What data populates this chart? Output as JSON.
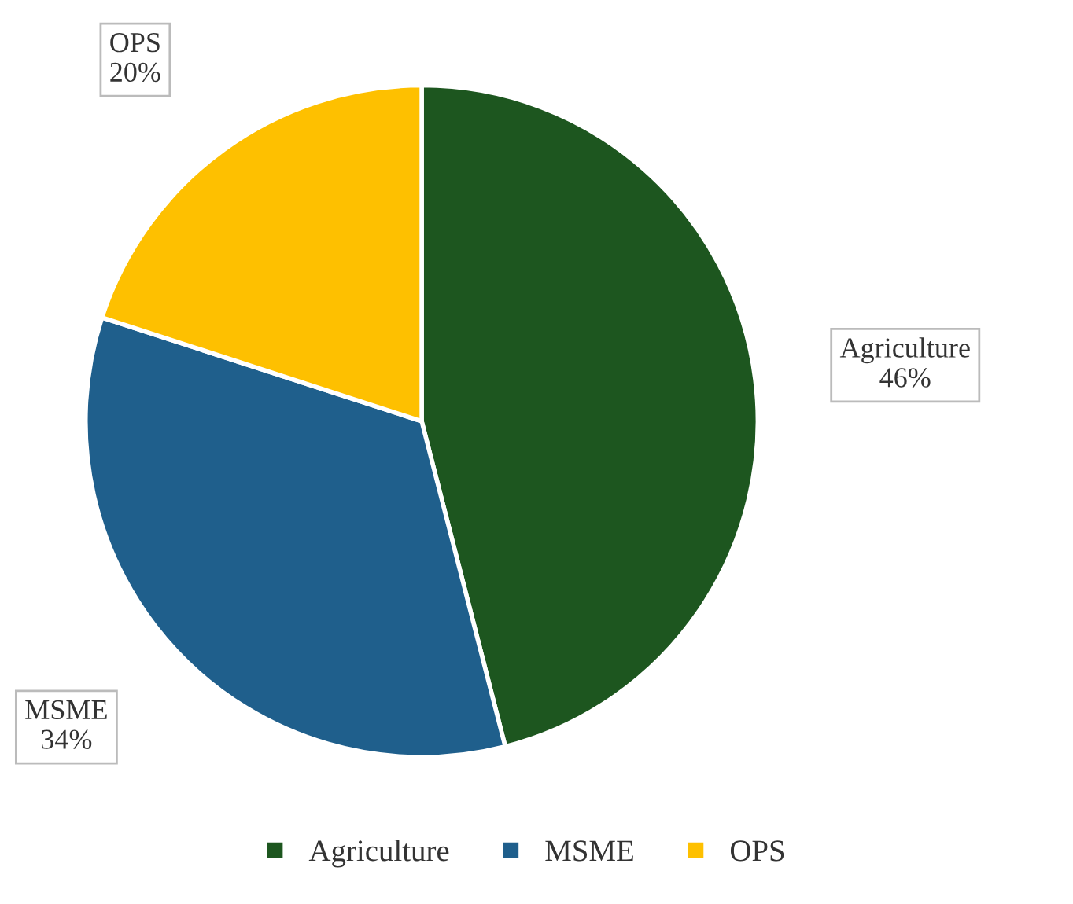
{
  "chart_data": {
    "type": "pie",
    "categories": [
      "Agriculture",
      "MSME",
      "OPS"
    ],
    "values": [
      46,
      34,
      20
    ],
    "colors": [
      "#1d561f",
      "#1f5f8c",
      "#fec000"
    ],
    "value_labels": [
      "46%",
      "34%",
      "20%"
    ],
    "legend": "bottom"
  }
}
